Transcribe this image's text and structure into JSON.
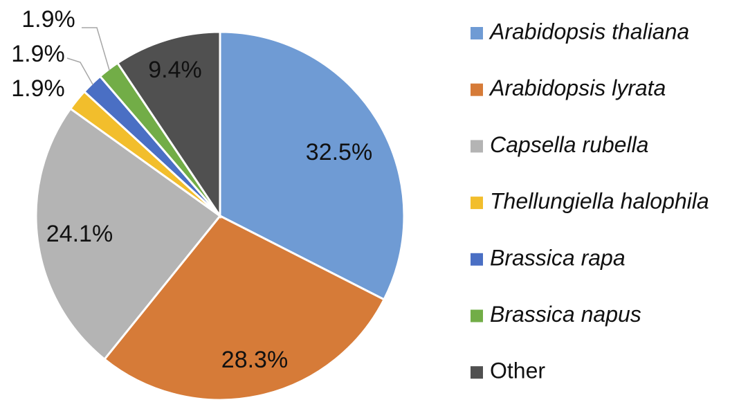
{
  "chart_data": {
    "type": "pie",
    "categories": [
      "Arabidopsis thaliana",
      "Arabidopsis lyrata",
      "Capsella rubella",
      "Thellungiella halophila",
      "Brassica rapa",
      "Brassica napus",
      "Other"
    ],
    "values": [
      32.5,
      28.3,
      24.1,
      1.9,
      1.9,
      1.9,
      9.4
    ],
    "value_labels": [
      "32.5%",
      "28.3%",
      "24.1%",
      "1.9%",
      "1.9%",
      "1.9%",
      "9.4%"
    ],
    "colors": [
      "#6f9bd4",
      "#d67b38",
      "#b4b4b4",
      "#f2be2c",
      "#4a6fc4",
      "#72ad47",
      "#505050"
    ],
    "legend": "right"
  }
}
